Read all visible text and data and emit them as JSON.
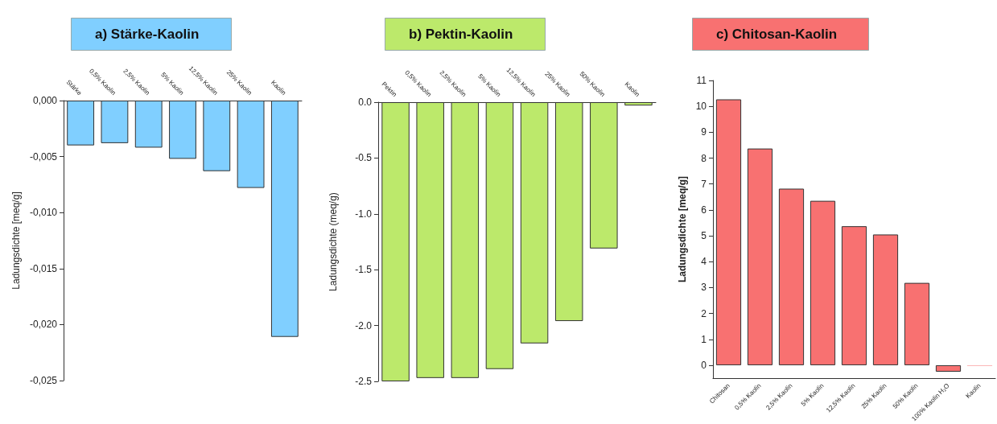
{
  "chart_data": [
    {
      "type": "bar",
      "title": "a) Stärke-Kaolin",
      "ylabel": "Ladungsdichte [meq/g]",
      "categories": [
        "Stärke",
        "0,5% Kaolin",
        "2,5% Kaolin",
        "5% Kaolin",
        "12,5% Kaolin",
        "25% Kaolin",
        "Kaolin"
      ],
      "values": [
        -0.004,
        -0.0038,
        -0.0042,
        -0.0052,
        -0.0063,
        -0.0078,
        -0.0211
      ],
      "color": "#80cfff",
      "ylim": [
        -0.025,
        0
      ],
      "yticks": [
        {
          "value": 0,
          "label": "0,000"
        },
        {
          "value": -0.005,
          "label": "-0,005"
        },
        {
          "value": -0.01,
          "label": "-0,010"
        },
        {
          "value": -0.015,
          "label": "-0,015"
        },
        {
          "value": -0.02,
          "label": "-0,020"
        },
        {
          "value": -0.025,
          "label": "-0,025"
        }
      ],
      "grid": false
    },
    {
      "type": "bar",
      "title": "b) Pektin-Kaolin",
      "ylabel": "Ladungsdichte (meq/g)",
      "categories": [
        "Pektin",
        "0,5% Kaolin",
        "2,5% Kaolin",
        "5% Kaolin",
        "12,5% Kaolin",
        "25% Kaolin",
        "50% Kaolin",
        "Kaolin"
      ],
      "values": [
        -2.5,
        -2.47,
        -2.47,
        -2.39,
        -2.16,
        -1.96,
        -1.31,
        -0.03
      ],
      "color": "#bce96b",
      "ylim": [
        -2.5,
        0
      ],
      "yticks": [
        {
          "value": 0,
          "label": "0.0"
        },
        -0.5,
        {
          "value": -1,
          "label": "-1.0"
        },
        -1.5,
        {
          "value": -2,
          "label": "-2.0"
        },
        -2.5
      ],
      "grid": false
    },
    {
      "type": "bar",
      "title": "c) Chitosan-Kaolin",
      "ylabel": "Ladungsdichte [meq/g]",
      "categories": [
        "Chitosan",
        "0,5% Kaolin",
        "2,5% Kaolin",
        "5% Kaolin",
        "12,5% Kaolin",
        "25% Kaolin",
        "50% Kaolin",
        "100% Kaolin H₂O",
        "Kaolin"
      ],
      "values": [
        10.27,
        8.37,
        6.82,
        6.35,
        5.37,
        5.05,
        3.18,
        -0.25,
        -0.02
      ],
      "color": "#f87171",
      "ylim": [
        -0.5,
        11
      ],
      "yticks": [
        0,
        1,
        2,
        3,
        4,
        5,
        6,
        7,
        8,
        9,
        10,
        11
      ],
      "grid": false
    }
  ]
}
